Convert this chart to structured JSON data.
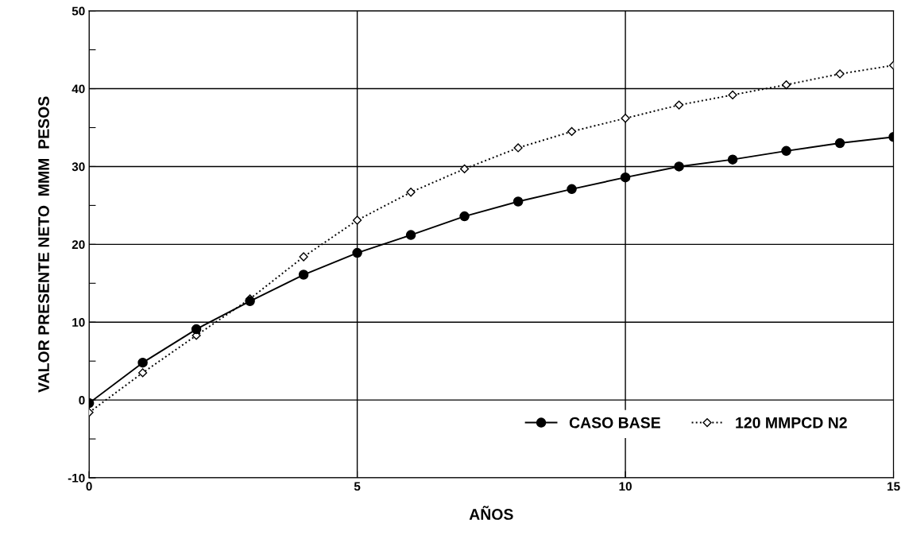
{
  "chart_data": {
    "type": "line",
    "xlabel": "AÑOS",
    "ylabel": "VALOR PRESENTE NETO  MMM  PESOS",
    "x": [
      0,
      1,
      2,
      3,
      4,
      5,
      6,
      7,
      8,
      9,
      10,
      11,
      12,
      13,
      14,
      15
    ],
    "series": [
      {
        "name": "CASO BASE",
        "color": "#000000",
        "marker": "circle",
        "line_style": "solid",
        "values": [
          -0.4,
          4.8,
          9.1,
          12.7,
          16.1,
          18.9,
          21.2,
          23.6,
          25.5,
          27.1,
          28.6,
          30.0,
          30.9,
          32.0,
          33.0,
          33.8
        ]
      },
      {
        "name": "120 MMPCD N2",
        "color": "#000000",
        "marker": "diamond",
        "line_style": "dotted",
        "values": [
          -1.6,
          3.5,
          8.3,
          13.0,
          18.4,
          23.1,
          26.7,
          29.7,
          32.4,
          34.5,
          36.2,
          37.9,
          39.2,
          40.5,
          41.9,
          43.0
        ]
      }
    ],
    "xlim": [
      0,
      15
    ],
    "xticks": [
      0,
      5,
      10,
      15
    ],
    "ylim": [
      -10,
      50
    ],
    "yticks": [
      -10,
      {
        "value": -5,
        "label": null
      },
      0,
      {
        "value": 5,
        "label": null
      },
      10,
      {
        "value": 15,
        "label": null
      },
      20,
      {
        "value": 25,
        "label": null
      },
      30,
      {
        "value": 35,
        "label": null
      },
      40,
      {
        "value": 45,
        "label": null
      },
      50
    ],
    "grid": true,
    "legend": "bottom right"
  }
}
